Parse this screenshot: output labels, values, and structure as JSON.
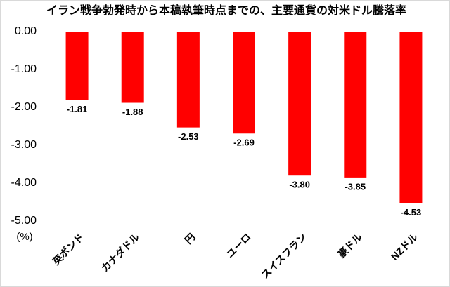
{
  "chart_data": {
    "type": "bar",
    "title": "イラン戦争勃発時から本稿執筆時点までの、主要通貨の対米ドル騰落率",
    "y_label": "(%)",
    "categories": [
      "英ポンド",
      "カナダドル",
      "円",
      "ユーロ",
      "スイスフラン",
      "豪ドル",
      "NZドル"
    ],
    "values": [
      -1.81,
      -1.88,
      -2.53,
      -2.69,
      -3.8,
      -3.85,
      -4.53
    ],
    "value_labels": [
      "-1.81",
      "-1.88",
      "-2.53",
      "-2.69",
      "-3.80",
      "-3.85",
      "-4.53"
    ],
    "color": "#ff0000",
    "ylim": [
      -5,
      0
    ],
    "yticks": [
      {
        "value": 0,
        "label": "0.00"
      },
      {
        "value": -1,
        "label": "-1.00"
      },
      {
        "value": -2,
        "label": "-2.00"
      },
      {
        "value": -3,
        "label": "-3.00"
      },
      {
        "value": -4,
        "label": "-4.00"
      },
      {
        "value": -5,
        "label": "-5.00"
      }
    ],
    "grid": false
  }
}
